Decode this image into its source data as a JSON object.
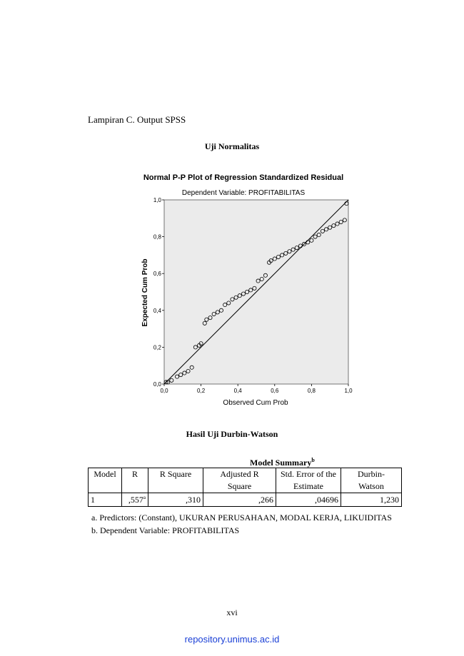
{
  "document": {
    "intro": "Lampiran C. Output SPSS",
    "heading1": "Uji Normalitas",
    "heading2": "Hasil Uji Durbin-Watson",
    "page_number": "xvi",
    "repository_link": "repository.unimus.ac.id"
  },
  "chart_data": {
    "type": "scatter",
    "title": "Normal P-P Plot of Regression Standardized Residual",
    "subtitle": "Dependent Variable: PROFITABILITAS",
    "xlabel": "Observed Cum Prob",
    "ylabel": "Expected Cum Prob",
    "xlim": [
      0,
      1
    ],
    "ylim": [
      0,
      1
    ],
    "x_ticks": [
      "0,0",
      "0,2",
      "0,4",
      "0,6",
      "0,8",
      "1,0"
    ],
    "y_ticks": [
      "0,0",
      "0,2",
      "0,4",
      "0,6",
      "0,8",
      "1,0"
    ],
    "reference_line": [
      [
        0,
        0
      ],
      [
        1,
        1
      ]
    ],
    "plot_background": "#ebebeb",
    "x": [
      0.01,
      0.02,
      0.04,
      0.07,
      0.09,
      0.11,
      0.13,
      0.15,
      0.17,
      0.19,
      0.2,
      0.22,
      0.23,
      0.25,
      0.27,
      0.29,
      0.31,
      0.33,
      0.35,
      0.37,
      0.39,
      0.41,
      0.43,
      0.45,
      0.47,
      0.49,
      0.51,
      0.53,
      0.55,
      0.57,
      0.58,
      0.6,
      0.62,
      0.64,
      0.66,
      0.68,
      0.7,
      0.72,
      0.74,
      0.76,
      0.78,
      0.8,
      0.82,
      0.84,
      0.86,
      0.88,
      0.9,
      0.92,
      0.94,
      0.96,
      0.98,
      0.99
    ],
    "y": [
      0.01,
      0.01,
      0.02,
      0.04,
      0.05,
      0.06,
      0.07,
      0.09,
      0.2,
      0.21,
      0.22,
      0.33,
      0.35,
      0.36,
      0.38,
      0.39,
      0.4,
      0.43,
      0.44,
      0.46,
      0.47,
      0.48,
      0.49,
      0.5,
      0.51,
      0.52,
      0.56,
      0.57,
      0.59,
      0.66,
      0.67,
      0.68,
      0.69,
      0.7,
      0.71,
      0.72,
      0.73,
      0.74,
      0.75,
      0.76,
      0.77,
      0.78,
      0.8,
      0.81,
      0.83,
      0.84,
      0.85,
      0.86,
      0.87,
      0.88,
      0.89,
      0.98
    ]
  },
  "table": {
    "caption": "Model Summary",
    "caption_sup": "b",
    "headers": [
      {
        "line1": "Model",
        "line2": ""
      },
      {
        "line1": "R",
        "line2": ""
      },
      {
        "line1": "R Square",
        "line2": ""
      },
      {
        "line1": "Adjusted R",
        "line2": "Square"
      },
      {
        "line1": "Std. Error of the",
        "line2": "Estimate"
      },
      {
        "line1": "Durbin-",
        "line2": "Watson"
      }
    ],
    "row": {
      "model": "1",
      "r": ",557",
      "r_sup": "a",
      "r_square": ",310",
      "adj_r_square": ",266",
      "std_error": ",04696",
      "durbin_watson": "1,230"
    },
    "footnote_a": "a. Predictors: (Constant), UKURAN PERUSAHAAN, MODAL KERJA, LIKUIDITAS",
    "footnote_b": "b. Dependent Variable: PROFITABILITAS"
  }
}
